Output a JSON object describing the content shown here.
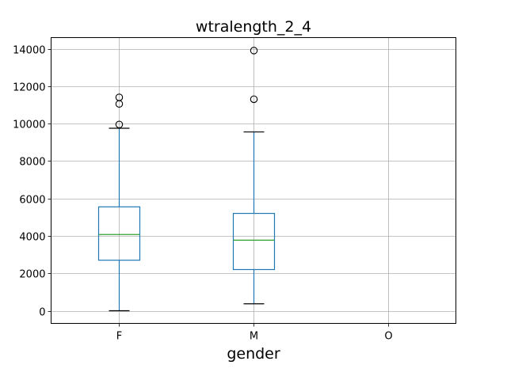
{
  "chart_data": {
    "type": "box",
    "title": "wtralength_2_4",
    "xlabel": "gender",
    "ylabel": "",
    "categories": [
      "F",
      "M",
      "O"
    ],
    "ylim": [
      -700,
      14600
    ],
    "yticks": [
      0,
      2000,
      4000,
      6000,
      8000,
      10000,
      12000,
      14000
    ],
    "ytick_labels": [
      "0",
      "2000",
      "4000",
      "6000",
      "8000",
      "10000",
      "12000",
      "14000"
    ],
    "grid": true,
    "boxes": [
      {
        "category": "F",
        "whisker_low": 0,
        "q1": 2700,
        "median": 4070,
        "q3": 5550,
        "whisker_high": 9750,
        "outliers": [
          9950,
          11050,
          11400
        ]
      },
      {
        "category": "M",
        "whisker_low": 370,
        "q1": 2200,
        "median": 3770,
        "q3": 5200,
        "whisker_high": 9550,
        "outliers": [
          11300,
          13900
        ]
      },
      {
        "category": "O",
        "whisker_low": null,
        "q1": null,
        "median": null,
        "q3": null,
        "whisker_high": null,
        "outliers": []
      }
    ],
    "colors": {
      "box": "#1f77b4",
      "median": "#2ca02c",
      "whisker_cap": "#000000",
      "outlier": "#000000",
      "grid": "#b0b0b0"
    }
  }
}
